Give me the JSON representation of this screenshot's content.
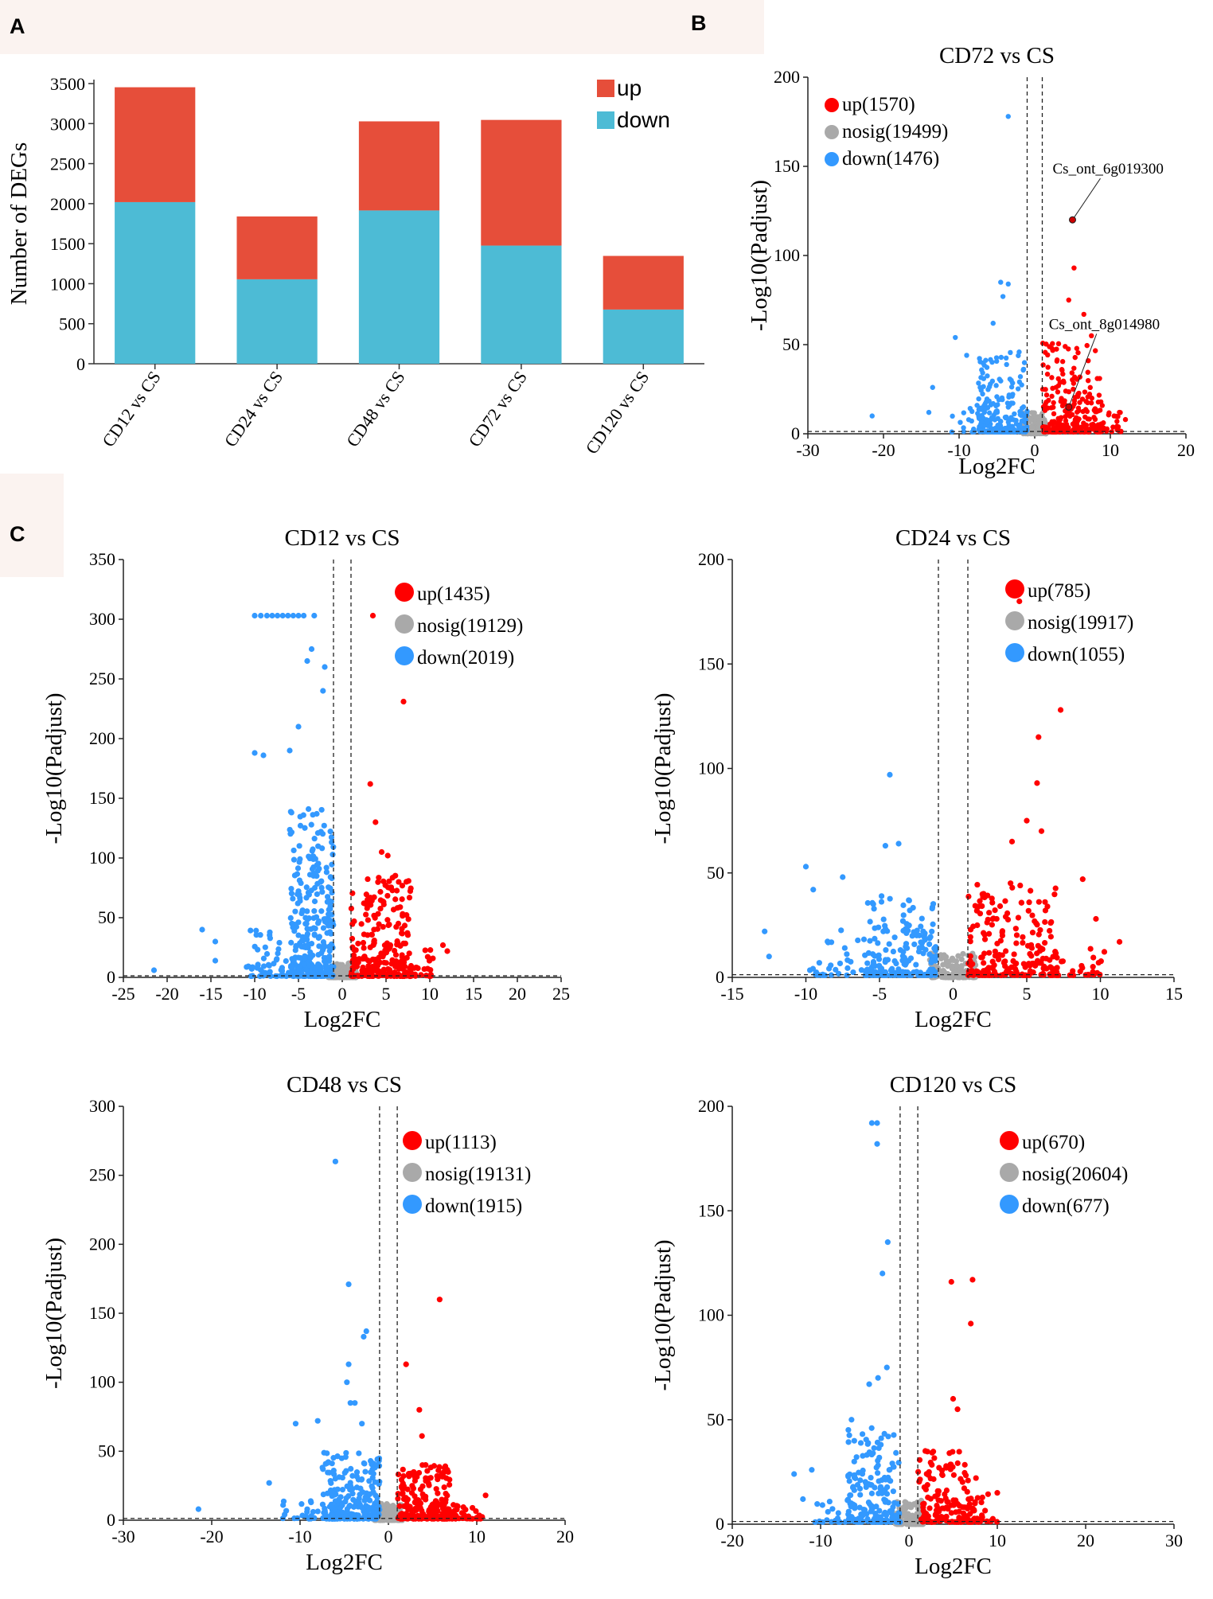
{
  "panel_labels": {
    "a": "A",
    "b": "B",
    "c": "C"
  },
  "colors": {
    "up": "#E64E3A",
    "down": "#4DBBD5",
    "vup": "#FF0000",
    "vdown": "#3399FF",
    "nosig": "#A9A9A9"
  },
  "chart_data": [
    {
      "id": "A",
      "type": "bar",
      "stacked": true,
      "title": "",
      "xlabel": "",
      "ylabel": "Number of DEGs",
      "ylim": [
        0,
        3500
      ],
      "yticks": [
        0,
        500,
        1000,
        1500,
        2000,
        2500,
        3000,
        3500
      ],
      "categories": [
        "CD12 vs CS",
        "CD24 vs CS",
        "CD48 vs CS",
        "CD72 vs CS",
        "CD120 vs CS"
      ],
      "series": [
        {
          "name": "down",
          "values": [
            2019,
            1055,
            1915,
            1476,
            677
          ]
        },
        {
          "name": "up",
          "values": [
            1435,
            785,
            1113,
            1570,
            670
          ]
        }
      ],
      "legend": [
        "up",
        "down"
      ],
      "legend_position": "top-right"
    },
    {
      "id": "B",
      "type": "scatter",
      "title": "CD72 vs CS",
      "xlabel": "Log2FC",
      "ylabel": "-Log10(Padjust)",
      "xlim": [
        -30,
        20
      ],
      "ylim": [
        0,
        200
      ],
      "xticks": [
        -30,
        -20,
        -10,
        0,
        10,
        20
      ],
      "yticks": [
        0,
        50,
        100,
        150,
        200
      ],
      "thresholds": {
        "log2fc": 1,
        "padj_line": 1.3
      },
      "legend": [
        {
          "key": "up",
          "label": "up(1570)"
        },
        {
          "key": "nosig",
          "label": "nosig(19499)"
        },
        {
          "key": "down",
          "label": "down(1476)"
        }
      ],
      "annotations": [
        {
          "text": "Cs_ont_6g019300",
          "x": 5.0,
          "y": 120
        },
        {
          "text": "Cs_ont_8g014980",
          "x": 4.5,
          "y": 15
        }
      ],
      "highlight_points": [
        {
          "x": -3.5,
          "y": 178
        },
        {
          "x": 5.2,
          "y": 93
        },
        {
          "x": 4.5,
          "y": 75
        },
        {
          "x": 6.5,
          "y": 67
        },
        {
          "x": -4.5,
          "y": 85
        },
        {
          "x": -3.5,
          "y": 84
        },
        {
          "x": -4.2,
          "y": 77
        },
        {
          "x": -5.5,
          "y": 62
        },
        {
          "x": -10.5,
          "y": 54
        },
        {
          "x": -9,
          "y": 44
        },
        {
          "x": -13.5,
          "y": 26
        },
        {
          "x": -21.5,
          "y": 10
        },
        {
          "x": -14,
          "y": 12
        },
        {
          "x": 10.5,
          "y": 10
        },
        {
          "x": 12,
          "y": 8
        },
        {
          "x": 7.5,
          "y": 55
        }
      ],
      "seed": 7,
      "n_gray": 160,
      "clouds": [
        {
          "color": "down",
          "xmin": -7.5,
          "xmax": -1,
          "ymax": 45,
          "n": 220
        },
        {
          "color": "down",
          "xmin": -11,
          "xmax": -6,
          "ymax": 18,
          "n": 25
        },
        {
          "color": "up",
          "xmin": 1,
          "xmax": 9,
          "ymax": 50,
          "n": 240
        },
        {
          "color": "up",
          "xmin": 8,
          "xmax": 11.5,
          "ymax": 14,
          "n": 25
        }
      ]
    },
    {
      "id": "C1",
      "type": "scatter",
      "title": "CD12 vs CS",
      "xlabel": "Log2FC",
      "ylabel": "-Log10(Padjust)",
      "xlim": [
        -25,
        25
      ],
      "ylim": [
        0,
        350
      ],
      "xticks": [
        -25,
        -20,
        -15,
        -10,
        -5,
        0,
        5,
        10,
        15,
        20,
        25
      ],
      "yticks": [
        0,
        50,
        100,
        150,
        200,
        250,
        300,
        350
      ],
      "thresholds": {
        "log2fc": 1,
        "padj_line": 1.3
      },
      "legend": [
        {
          "key": "up",
          "label": "up(1435)"
        },
        {
          "key": "nosig",
          "label": "nosig(19129)"
        },
        {
          "key": "down",
          "label": "down(2019)"
        }
      ],
      "annotations": [],
      "highlight_points": [
        {
          "x": -10,
          "y": 303
        },
        {
          "x": -9.3,
          "y": 303
        },
        {
          "x": -8.6,
          "y": 303
        },
        {
          "x": -8,
          "y": 303
        },
        {
          "x": -7.4,
          "y": 303
        },
        {
          "x": -6.8,
          "y": 303
        },
        {
          "x": -6.2,
          "y": 303
        },
        {
          "x": -5.6,
          "y": 303
        },
        {
          "x": -5,
          "y": 303
        },
        {
          "x": -4.4,
          "y": 303
        },
        {
          "x": -3.2,
          "y": 303
        },
        {
          "x": 3.5,
          "y": 303
        },
        {
          "x": 7,
          "y": 231
        },
        {
          "x": 3.2,
          "y": 162
        },
        {
          "x": -3.5,
          "y": 275
        },
        {
          "x": -4,
          "y": 265
        },
        {
          "x": -2,
          "y": 260
        },
        {
          "x": -2.2,
          "y": 240
        },
        {
          "x": -5,
          "y": 210
        },
        {
          "x": -10,
          "y": 188
        },
        {
          "x": -9,
          "y": 186
        },
        {
          "x": -6,
          "y": 190
        },
        {
          "x": -16,
          "y": 40
        },
        {
          "x": -14.5,
          "y": 30
        },
        {
          "x": -21.5,
          "y": 6
        },
        {
          "x": -14.5,
          "y": 14
        },
        {
          "x": 11.5,
          "y": 27
        },
        {
          "x": 12,
          "y": 22
        },
        {
          "x": 4.5,
          "y": 105
        },
        {
          "x": 5.2,
          "y": 102
        },
        {
          "x": 3.8,
          "y": 130
        }
      ],
      "seed": 13,
      "n_gray": 160,
      "clouds": [
        {
          "color": "down",
          "xmin": -6,
          "xmax": -1,
          "ymax": 140,
          "n": 320
        },
        {
          "color": "down",
          "xmin": -11,
          "xmax": -5,
          "ymax": 40,
          "n": 60
        },
        {
          "color": "up",
          "xmin": 1,
          "xmax": 8,
          "ymax": 85,
          "n": 240
        },
        {
          "color": "up",
          "xmin": 6,
          "xmax": 10.5,
          "ymax": 25,
          "n": 30
        }
      ]
    },
    {
      "id": "C2",
      "type": "scatter",
      "title": "CD24 vs CS",
      "xlabel": "Log2FC",
      "ylabel": "-Log10(Padjust)",
      "xlim": [
        -15,
        15
      ],
      "ylim": [
        0,
        200
      ],
      "xticks": [
        -15,
        -10,
        -5,
        0,
        5,
        10,
        15
      ],
      "yticks": [
        0,
        50,
        100,
        150,
        200
      ],
      "thresholds": {
        "log2fc": 1,
        "padj_line": 1.3
      },
      "legend": [
        {
          "key": "up",
          "label": "up(785)"
        },
        {
          "key": "nosig",
          "label": "nosig(19917)"
        },
        {
          "key": "down",
          "label": "down(1055)"
        }
      ],
      "annotations": [],
      "highlight_points": [
        {
          "x": 4.5,
          "y": 180
        },
        {
          "x": 7.3,
          "y": 128
        },
        {
          "x": 5.8,
          "y": 115
        },
        {
          "x": 5.7,
          "y": 93
        },
        {
          "x": -4.3,
          "y": 97
        },
        {
          "x": 5,
          "y": 75
        },
        {
          "x": 6,
          "y": 70
        },
        {
          "x": 4,
          "y": 65
        },
        {
          "x": -3.7,
          "y": 64
        },
        {
          "x": -4.6,
          "y": 63
        },
        {
          "x": -10,
          "y": 53
        },
        {
          "x": -7.5,
          "y": 48
        },
        {
          "x": 8.8,
          "y": 47
        },
        {
          "x": 9.7,
          "y": 28
        },
        {
          "x": 11.3,
          "y": 17
        },
        {
          "x": -12.8,
          "y": 22
        },
        {
          "x": -12.5,
          "y": 10
        },
        {
          "x": -9.5,
          "y": 42
        }
      ],
      "seed": 29,
      "n_gray": 140,
      "clouds": [
        {
          "color": "down",
          "xmin": -6,
          "xmax": -1,
          "ymax": 38,
          "n": 200
        },
        {
          "color": "down",
          "xmin": -10,
          "xmax": -5,
          "ymax": 22,
          "n": 35
        },
        {
          "color": "up",
          "xmin": 1,
          "xmax": 7,
          "ymax": 45,
          "n": 200
        },
        {
          "color": "up",
          "xmin": 6,
          "xmax": 10.5,
          "ymax": 15,
          "n": 35
        }
      ]
    },
    {
      "id": "C3",
      "type": "scatter",
      "title": "CD48 vs CS",
      "xlabel": "Log2FC",
      "ylabel": "-Log10(Padjust)",
      "xlim": [
        -30,
        20
      ],
      "ylim": [
        0,
        300
      ],
      "xticks": [
        -30,
        -20,
        -10,
        0,
        10,
        20
      ],
      "yticks": [
        0,
        50,
        100,
        150,
        200,
        250,
        300
      ],
      "thresholds": {
        "log2fc": 1,
        "padj_line": 1.3
      },
      "legend": [
        {
          "key": "up",
          "label": "up(1113)"
        },
        {
          "key": "nosig",
          "label": "nosig(19131)"
        },
        {
          "key": "down",
          "label": "down(1915)"
        }
      ],
      "annotations": [],
      "highlight_points": [
        {
          "x": -6,
          "y": 260
        },
        {
          "x": -4.5,
          "y": 171
        },
        {
          "x": 5.8,
          "y": 160
        },
        {
          "x": -2.5,
          "y": 137
        },
        {
          "x": -2.8,
          "y": 133
        },
        {
          "x": 2,
          "y": 113
        },
        {
          "x": -4.5,
          "y": 113
        },
        {
          "x": -4.7,
          "y": 100
        },
        {
          "x": -4.3,
          "y": 85
        },
        {
          "x": -3.8,
          "y": 85
        },
        {
          "x": 3.5,
          "y": 80
        },
        {
          "x": -10.5,
          "y": 70
        },
        {
          "x": -8,
          "y": 72
        },
        {
          "x": -3,
          "y": 70
        },
        {
          "x": 3.8,
          "y": 61
        },
        {
          "x": -13.5,
          "y": 27
        },
        {
          "x": -21.5,
          "y": 8
        },
        {
          "x": 11,
          "y": 18
        }
      ],
      "seed": 41,
      "n_gray": 150,
      "clouds": [
        {
          "color": "down",
          "xmin": -7.5,
          "xmax": -1,
          "ymax": 48,
          "n": 240
        },
        {
          "color": "down",
          "xmin": -12,
          "xmax": -6,
          "ymax": 15,
          "n": 30
        },
        {
          "color": "up",
          "xmin": 1,
          "xmax": 7,
          "ymax": 40,
          "n": 220
        },
        {
          "color": "up",
          "xmin": 6,
          "xmax": 11,
          "ymax": 12,
          "n": 40
        }
      ]
    },
    {
      "id": "C4",
      "type": "scatter",
      "title": "CD120 vs CS",
      "xlabel": "Log2FC",
      "ylabel": "-Log10(Padjust)",
      "xlim": [
        -20,
        30
      ],
      "ylim": [
        0,
        200
      ],
      "xticks": [
        -20,
        -10,
        0,
        10,
        20,
        30
      ],
      "yticks": [
        0,
        50,
        100,
        150,
        200
      ],
      "thresholds": {
        "log2fc": 1,
        "padj_line": 1.3
      },
      "legend": [
        {
          "key": "up",
          "label": "up(670)"
        },
        {
          "key": "nosig",
          "label": "nosig(20604)"
        },
        {
          "key": "down",
          "label": "down(677)"
        }
      ],
      "annotations": [],
      "highlight_points": [
        {
          "x": -4.2,
          "y": 192
        },
        {
          "x": -3.6,
          "y": 192
        },
        {
          "x": -3.6,
          "y": 182
        },
        {
          "x": -2.4,
          "y": 135
        },
        {
          "x": -3,
          "y": 120
        },
        {
          "x": 4.8,
          "y": 116
        },
        {
          "x": 7.2,
          "y": 117
        },
        {
          "x": 7,
          "y": 96
        },
        {
          "x": -2.5,
          "y": 75
        },
        {
          "x": -3.5,
          "y": 70
        },
        {
          "x": -4.5,
          "y": 67
        },
        {
          "x": 5,
          "y": 60
        },
        {
          "x": 5.5,
          "y": 55
        },
        {
          "x": -6.5,
          "y": 50
        },
        {
          "x": -13,
          "y": 24
        },
        {
          "x": -11,
          "y": 26
        },
        {
          "x": -12,
          "y": 12
        },
        {
          "x": 10,
          "y": 15
        }
      ],
      "seed": 53,
      "n_gray": 140,
      "clouds": [
        {
          "color": "down",
          "xmin": -7,
          "xmax": -1,
          "ymax": 45,
          "n": 200
        },
        {
          "color": "down",
          "xmin": -11,
          "xmax": -6,
          "ymax": 12,
          "n": 25
        },
        {
          "color": "up",
          "xmin": 1,
          "xmax": 8,
          "ymax": 35,
          "n": 160
        },
        {
          "color": "up",
          "xmin": 7,
          "xmax": 10,
          "ymax": 15,
          "n": 20
        }
      ]
    }
  ]
}
